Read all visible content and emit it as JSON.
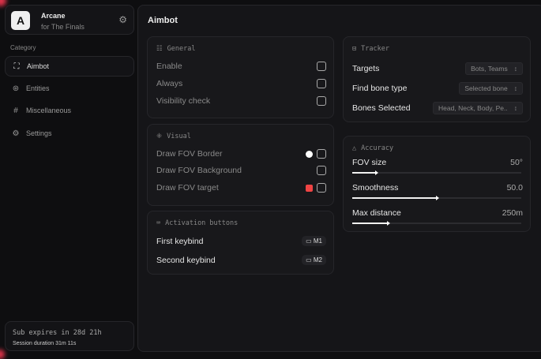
{
  "sidebar": {
    "brand": {
      "logo": "A",
      "name": "Arcane",
      "subtitle": "for The Finals",
      "icon": "gear-icon"
    },
    "category_label": "Category",
    "items": [
      {
        "label": "Aimbot",
        "icon": "crosshair-icon",
        "active": true
      },
      {
        "label": "Entities",
        "icon": "entities-icon"
      },
      {
        "label": "Miscellaneous",
        "icon": "grid-icon"
      },
      {
        "label": "Settings",
        "icon": "gear-icon"
      }
    ],
    "subscription": {
      "expires": "Sub expires in 28d 21h",
      "session": "Session duration 31m 11s"
    }
  },
  "main": {
    "title": "Aimbot",
    "general": {
      "title": "General",
      "rows": [
        {
          "label": "Enable",
          "checked": false
        },
        {
          "label": "Always",
          "checked": false
        },
        {
          "label": "Visibility check",
          "checked": false
        }
      ]
    },
    "visual": {
      "title": "Visual",
      "rows": [
        {
          "label": "Draw FOV Border",
          "color": "#ffffff",
          "checked": false
        },
        {
          "label": "Draw FOV Background",
          "checked": false
        },
        {
          "label": "Draw FOV target",
          "color": "#ef4444",
          "checked": false
        }
      ]
    },
    "activation": {
      "title": "Activation buttons",
      "rows": [
        {
          "label": "First keybind",
          "key": "M1"
        },
        {
          "label": "Second keybind",
          "key": "M2"
        }
      ]
    },
    "tracker": {
      "title": "Tracker",
      "rows": [
        {
          "label": "Targets",
          "value": "Bots, Teams"
        },
        {
          "label": "Find bone type",
          "value": "Selected bone"
        },
        {
          "label": "Bones Selected",
          "value": "Head, Neck, Body, Pe.."
        }
      ]
    },
    "accuracy": {
      "title": "Accuracy",
      "sliders": [
        {
          "label": "FOV size",
          "value": "50°",
          "fraction": 0.14
        },
        {
          "label": "Smoothness",
          "value": "50.0",
          "fraction": 0.5
        },
        {
          "label": "Max distance",
          "value": "250m",
          "fraction": 0.21
        }
      ]
    }
  }
}
